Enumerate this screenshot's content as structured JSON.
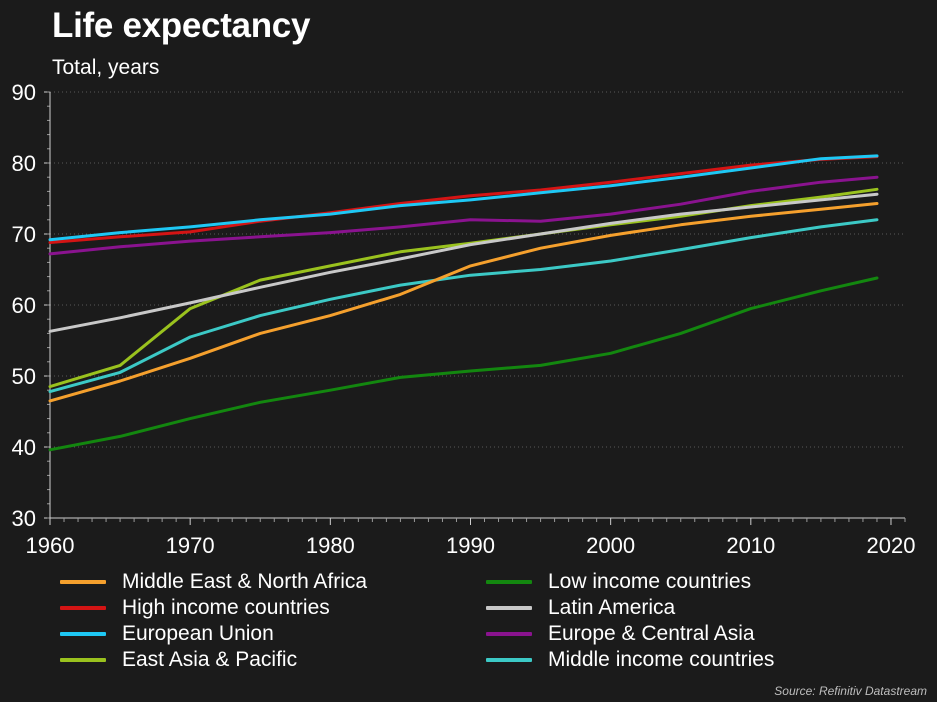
{
  "title": "Life expectancy",
  "subtitle": "Total, years",
  "source": "Source: Refinitiv Datastream",
  "chart_data": {
    "type": "line",
    "title": "Life expectancy",
    "subtitle": "Total, years",
    "xlabel": "",
    "ylabel": "Total, years",
    "xlim": [
      1960,
      2021
    ],
    "ylim": [
      30,
      90
    ],
    "xticks": [
      1960,
      1970,
      1980,
      1990,
      2000,
      2010,
      2020
    ],
    "yticks": [
      30,
      40,
      50,
      60,
      70,
      80,
      90
    ],
    "grid": "horizontal dotted",
    "legend_position": "bottom",
    "x": [
      1960,
      1965,
      1970,
      1975,
      1980,
      1985,
      1990,
      1995,
      2000,
      2005,
      2010,
      2015,
      2019
    ],
    "series": [
      {
        "name": "Middle East & North Africa",
        "color": "#f5a02d",
        "values": [
          46.5,
          49.3,
          52.5,
          56.0,
          58.5,
          61.5,
          65.5,
          68.0,
          69.8,
          71.3,
          72.5,
          73.5,
          74.3
        ]
      },
      {
        "name": "Low income countries",
        "color": "#13870f",
        "values": [
          39.6,
          41.5,
          44.0,
          46.3,
          48.0,
          49.8,
          50.7,
          51.5,
          53.2,
          56.0,
          59.5,
          62.0,
          63.8
        ]
      },
      {
        "name": "High income countries",
        "color": "#d41414",
        "values": [
          68.8,
          69.6,
          70.3,
          71.8,
          73.0,
          74.3,
          75.4,
          76.2,
          77.3,
          78.5,
          79.7,
          80.5,
          80.9
        ]
      },
      {
        "name": "Latin America",
        "color": "#c8c8c8",
        "values": [
          56.3,
          58.2,
          60.3,
          62.5,
          64.6,
          66.5,
          68.5,
          70.0,
          71.5,
          72.8,
          73.8,
          74.8,
          75.6
        ]
      },
      {
        "name": "European Union",
        "color": "#1ec8f5",
        "values": [
          69.2,
          70.2,
          71.0,
          72.0,
          72.8,
          74.0,
          74.8,
          75.8,
          76.8,
          78.0,
          79.3,
          80.6,
          81.0
        ]
      },
      {
        "name": "Europe & Central Asia",
        "color": "#8a138f",
        "values": [
          67.2,
          68.2,
          69.0,
          69.6,
          70.2,
          71.0,
          72.0,
          71.8,
          72.8,
          74.2,
          76.0,
          77.3,
          78.0
        ]
      },
      {
        "name": "East Asia & Pacific",
        "color": "#9ac21e",
        "values": [
          48.5,
          51.5,
          59.5,
          63.5,
          65.5,
          67.5,
          68.7,
          70.0,
          71.3,
          72.5,
          74.0,
          75.2,
          76.3
        ]
      },
      {
        "name": "Middle income countries",
        "color": "#3cc9c6",
        "values": [
          47.8,
          50.5,
          55.5,
          58.5,
          60.8,
          62.8,
          64.2,
          65.0,
          66.2,
          67.8,
          69.5,
          71.0,
          72.0
        ]
      }
    ]
  }
}
